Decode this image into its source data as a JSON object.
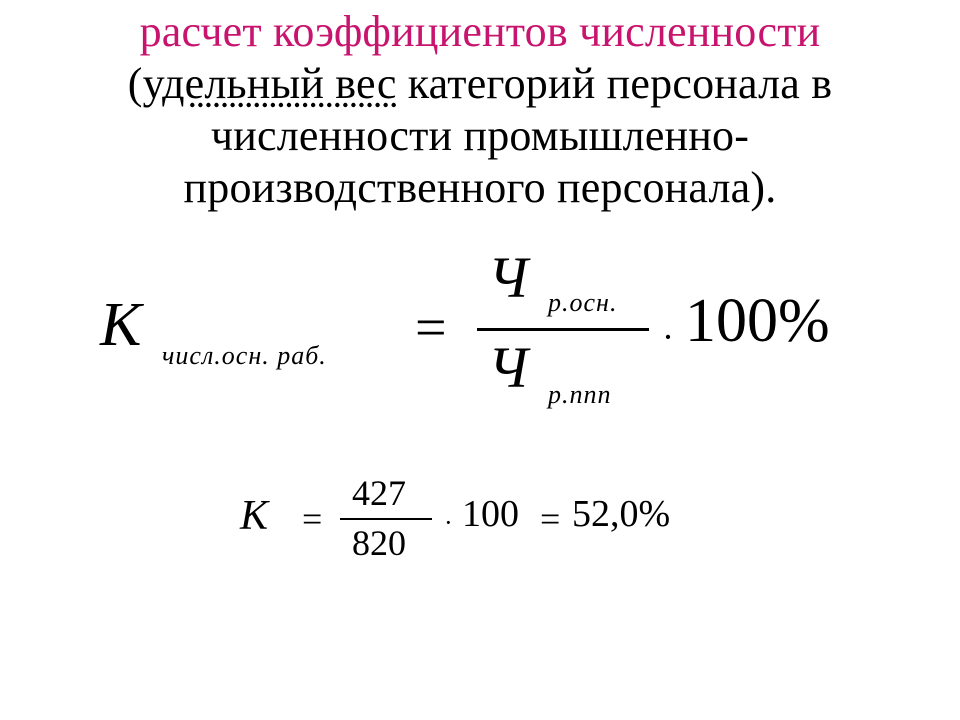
{
  "title": {
    "line1": "расчет коэффициентов численности",
    "line2_pre": "(",
    "line2_udl": "удельный вес",
    "line2_post": " категорий персонала в",
    "line3": "численности промышленно-",
    "line4": "производственного персонала)."
  },
  "formula1": {
    "K": "К",
    "K_sub": "числ.осн. раб.",
    "eq": "=",
    "num": "Ч",
    "num_sub": "р.осн.",
    "den": "Ч",
    "den_sub": "р.ппп",
    "dot": "·",
    "hundred": "100%"
  },
  "formula2": {
    "K": "К",
    "eq1": "=",
    "num": "427",
    "den": "820",
    "dot": "·",
    "hundred": "100",
    "eq2": "=",
    "result": "52,0%"
  }
}
